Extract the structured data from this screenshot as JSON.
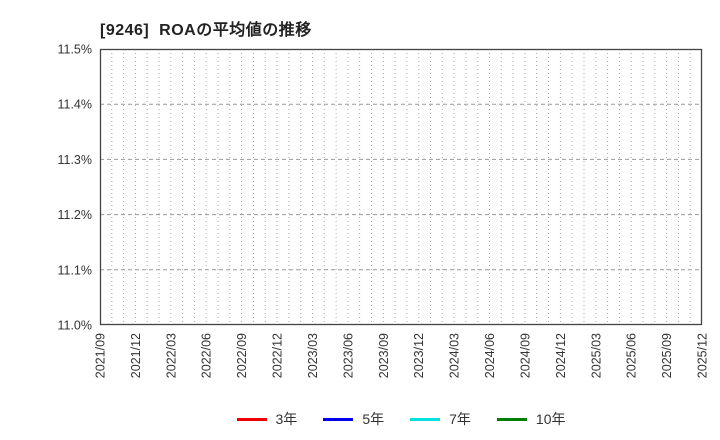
{
  "page": {
    "background_color": "#ffffff"
  },
  "chart_data": {
    "type": "line",
    "title": "[9246]  ROAの平均値の推移",
    "title_color": "#222222",
    "x_tick_labels": [
      "2021/09",
      "2021/12",
      "2022/03",
      "2022/06",
      "2022/09",
      "2022/12",
      "2023/03",
      "2023/06",
      "2023/09",
      "2023/12",
      "2024/03",
      "2024/06",
      "2024/09",
      "2024/12",
      "2025/03",
      "2025/06",
      "2025/09",
      "2025/12"
    ],
    "x_months_per_tick": 3,
    "x_total_month_intervals": 51,
    "y_tick_labels": [
      "11.0%",
      "11.1%",
      "11.2%",
      "11.3%",
      "11.4%",
      "11.5%"
    ],
    "ylim": [
      11.0,
      11.5
    ],
    "y_tick_step": 0.1,
    "xlabel": "",
    "ylabel": "",
    "grid": {
      "vertical": "monthly, dotted",
      "horizontal": "at each 0.1% tick, dashed",
      "vertical_color": "#aaaaaa",
      "horizontal_color": "#999999"
    },
    "axis_border_color": "#444444",
    "tick_label_color": "#333333",
    "legend_position": "bottom-center",
    "series": [
      {
        "name": "3年",
        "color": "#ee0000",
        "values": []
      },
      {
        "name": "5年",
        "color": "#0000ee",
        "values": []
      },
      {
        "name": "7年",
        "color": "#00e0e0",
        "values": []
      },
      {
        "name": "10年",
        "color": "#007f00",
        "values": []
      }
    ],
    "note_visible_data": "no data lines are drawn inside the plot area"
  }
}
